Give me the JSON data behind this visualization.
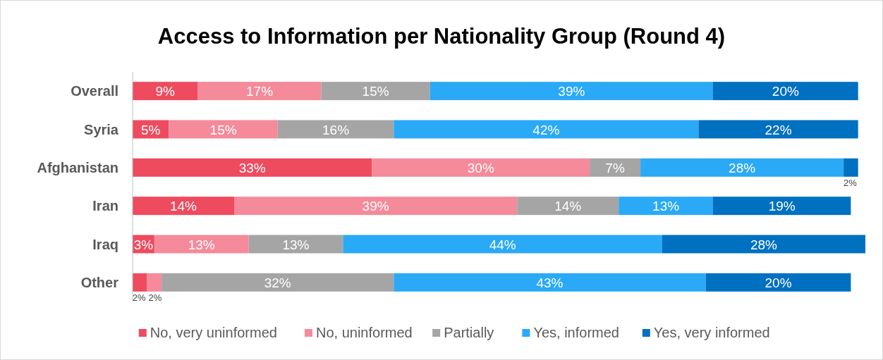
{
  "chart_data": {
    "type": "bar",
    "orientation": "horizontal",
    "stacked": true,
    "title": "Access to Information per Nationality Group (Round 4)",
    "categories": [
      "Overall",
      "Syria",
      "Afghanistan",
      "Iran",
      "Iraq",
      "Other"
    ],
    "legend": "bottom",
    "grid": false,
    "series": [
      {
        "name": "No, very uninformed",
        "color": "#ee4b5f",
        "values": [
          9,
          5,
          33,
          14,
          3,
          2
        ],
        "value_labels": [
          "9%",
          "5%",
          "33%",
          "14%",
          "3%",
          "2%"
        ]
      },
      {
        "name": "No, uninformed",
        "color": "#f48a9a",
        "values": [
          17,
          15,
          30,
          39,
          13,
          2
        ],
        "value_labels": [
          "17%",
          "15%",
          "30%",
          "39%",
          "13%",
          "2%"
        ]
      },
      {
        "name": "Partially",
        "color": "#a5a5a5",
        "values": [
          15,
          16,
          7,
          14,
          13,
          32
        ],
        "value_labels": [
          "15%",
          "16%",
          "7%",
          "14%",
          "13%",
          "32%"
        ]
      },
      {
        "name": "Yes, informed",
        "color": "#2aa9f7",
        "values": [
          39,
          42,
          28,
          13,
          44,
          43
        ],
        "value_labels": [
          "39%",
          "42%",
          "28%",
          "13%",
          "44%",
          "43%"
        ]
      },
      {
        "name": "Yes, very informed",
        "color": "#0070c0",
        "values": [
          20,
          22,
          2,
          19,
          28,
          20
        ],
        "value_labels": [
          "20%",
          "22%",
          "2%",
          "19%",
          "28%",
          "20%"
        ]
      }
    ]
  }
}
